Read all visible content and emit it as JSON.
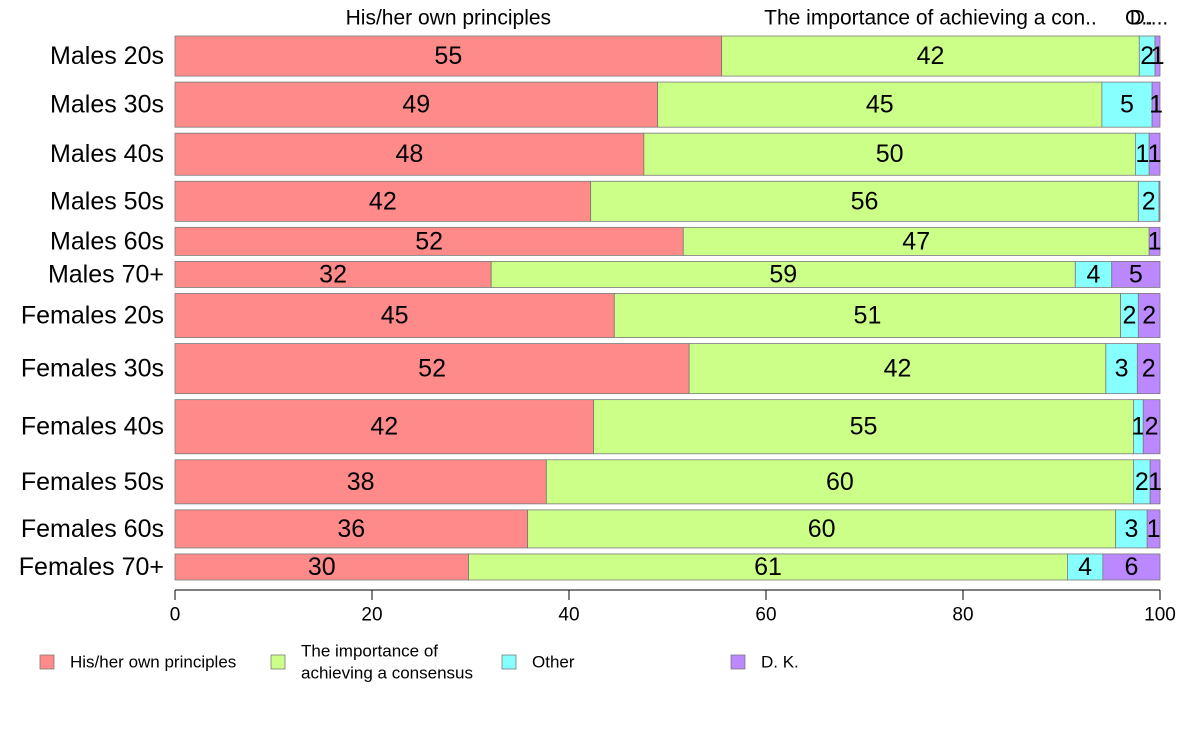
{
  "chart_data": {
    "type": "bar",
    "orientation": "horizontal",
    "stacked": true,
    "categories": [
      "Males 20s",
      "Males 30s",
      "Males 40s",
      "Males 50s",
      "Males 60s",
      "Males 70+",
      "Females 20s",
      "Females 30s",
      "Females 40s",
      "Females 50s",
      "Females 60s",
      "Females 70+"
    ],
    "series": [
      {
        "name": "His/her own principles",
        "color": "#ff8a8a",
        "values": [
          55.5,
          49.0,
          47.6,
          42.2,
          51.6,
          32.1,
          44.6,
          52.2,
          42.5,
          37.7,
          35.8,
          29.8
        ],
        "labels": [
          "55",
          "49",
          "48",
          "42",
          "52",
          "32",
          "45",
          "52",
          "42",
          "38",
          "36",
          "30"
        ]
      },
      {
        "name": "The importance of achieving a consensus",
        "legend_lines": [
          "The importance of",
          "achieving a consensus"
        ],
        "color": "#ccff88",
        "values": [
          42.4,
          45.1,
          49.9,
          55.6,
          47.3,
          59.3,
          51.4,
          42.3,
          54.8,
          59.6,
          59.7,
          60.8
        ],
        "labels": [
          "42",
          "45",
          "50",
          "56",
          "47",
          "59",
          "51",
          "42",
          "55",
          "60",
          "60",
          "61"
        ]
      },
      {
        "name": "Other",
        "color": "#88ffff",
        "values": [
          1.6,
          5.1,
          1.4,
          2.1,
          0.0,
          3.7,
          1.8,
          3.2,
          1.0,
          1.7,
          3.2,
          3.6
        ],
        "labels": [
          "2",
          "5",
          "1",
          "2",
          "",
          "4",
          "2",
          "3",
          "1",
          "2",
          "3",
          "4"
        ]
      },
      {
        "name": "D. K.",
        "color": "#bb88ff",
        "values": [
          0.5,
          0.8,
          1.1,
          0.1,
          1.1,
          4.9,
          2.2,
          2.3,
          1.7,
          1.0,
          1.3,
          5.8
        ],
        "labels": [
          "1",
          "1",
          "1",
          "",
          "1",
          "5",
          "2",
          "2",
          "2",
          "1",
          "1",
          "6"
        ]
      }
    ],
    "bar_height_weights": [
      40,
      45,
      42,
      40,
      28,
      26,
      44,
      50,
      54,
      44,
      38,
      26
    ],
    "column_headers": [
      "His/her own principles",
      "The importance of achieving a con..",
      "O..",
      "D...."
    ],
    "xlim": [
      0,
      100
    ],
    "xticks": [
      "0",
      "20",
      "40",
      "60",
      "80",
      "100"
    ],
    "xlabel": "",
    "ylabel": "",
    "title": "",
    "grid": false,
    "legend": "bottom"
  }
}
